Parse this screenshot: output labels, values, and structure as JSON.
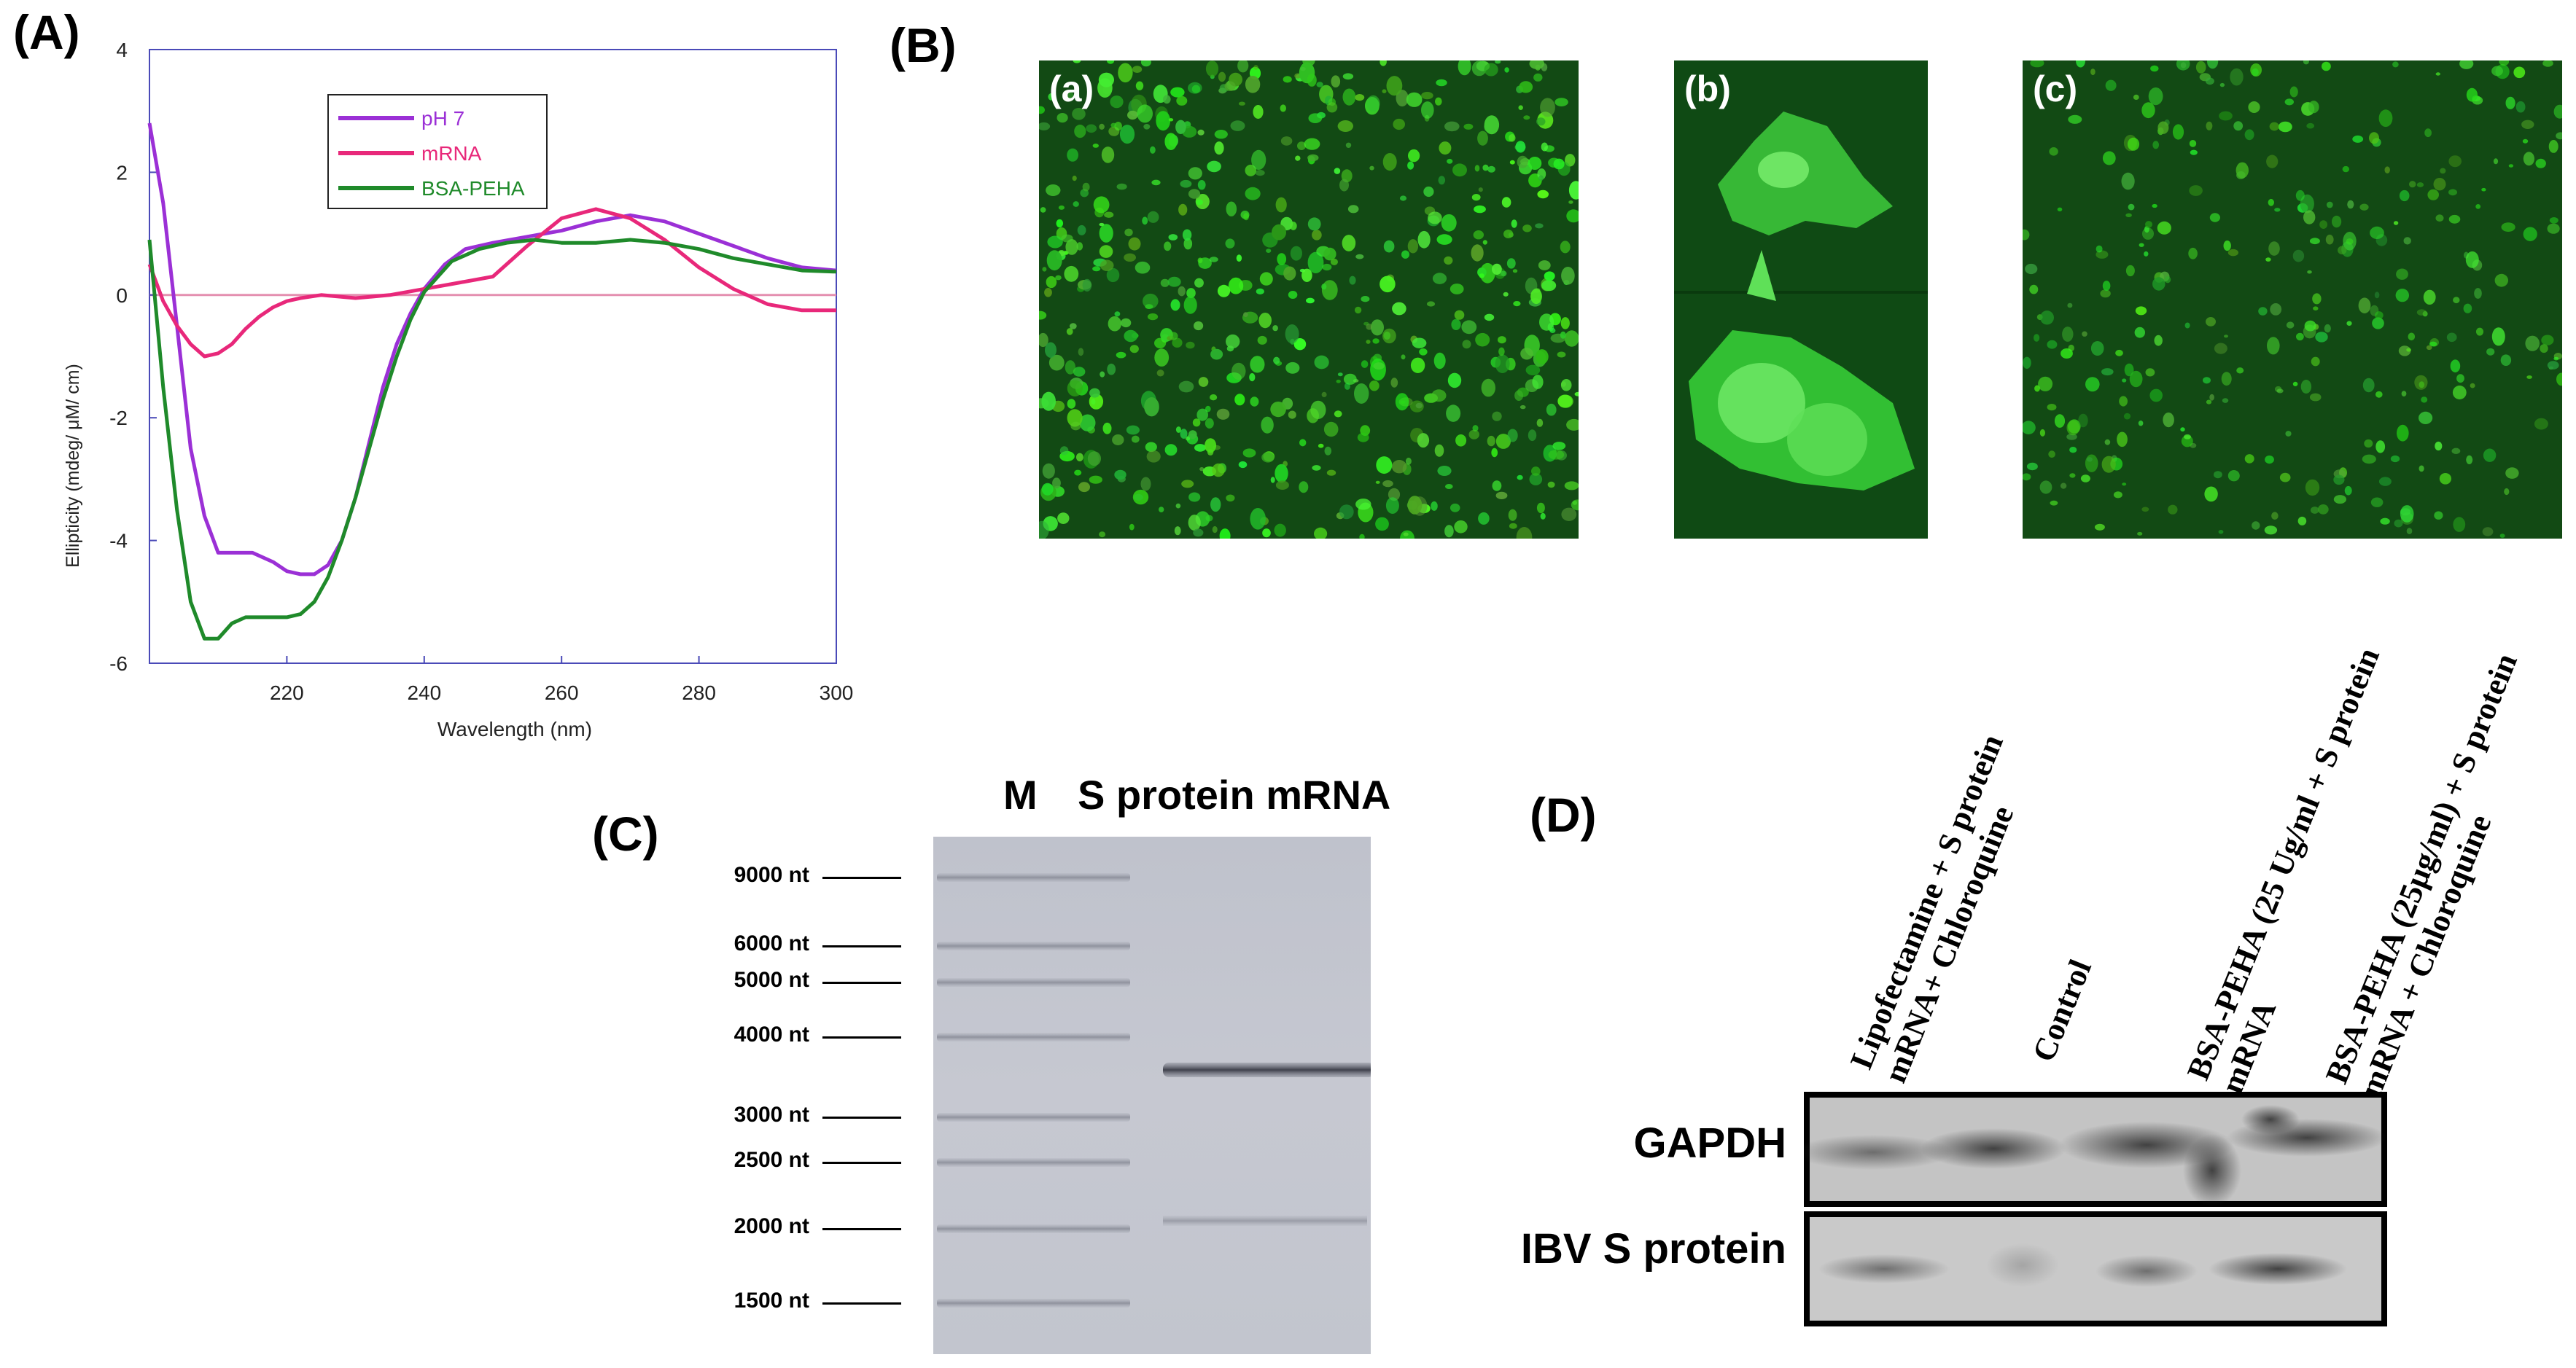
{
  "panels": {
    "A": "(A)",
    "B": "(B)",
    "C": "(C)",
    "D": "(D)"
  },
  "panel_b": {
    "sub_a": "(a)",
    "sub_b": "(b)",
    "sub_c": "(c)",
    "color": "#2fd02a"
  },
  "chart_data": {
    "type": "line",
    "title": "",
    "xlabel": "Wavelength (nm)",
    "ylabel": "Ellipticity (mdeg/ μM/ cm)",
    "xlim": [
      200,
      300
    ],
    "ylim": [
      -6,
      4
    ],
    "xticks": [
      220,
      240,
      260,
      280,
      300
    ],
    "yticks": [
      4,
      2,
      0,
      -2,
      -4,
      -6
    ],
    "grid": false,
    "legend_position": "top-center",
    "series": [
      {
        "name": "pH 7",
        "color": "#9b30d6",
        "x": [
          200,
          202,
          204,
          206,
          208,
          210,
          212,
          215,
          218,
          220,
          222,
          224,
          226,
          228,
          230,
          232,
          234,
          236,
          238,
          240,
          243,
          246,
          250,
          255,
          260,
          265,
          270,
          275,
          280,
          285,
          290,
          295,
          300
        ],
        "y": [
          2.8,
          1.5,
          -0.5,
          -2.5,
          -3.6,
          -4.2,
          -4.2,
          -4.2,
          -4.35,
          -4.5,
          -4.55,
          -4.55,
          -4.4,
          -4.0,
          -3.3,
          -2.4,
          -1.5,
          -0.8,
          -0.3,
          0.1,
          0.5,
          0.75,
          0.85,
          0.95,
          1.05,
          1.2,
          1.3,
          1.2,
          1.0,
          0.8,
          0.6,
          0.45,
          0.4
        ]
      },
      {
        "name": "mRNA",
        "color": "#e8287a",
        "x": [
          200,
          202,
          204,
          206,
          208,
          210,
          212,
          214,
          216,
          218,
          220,
          222,
          225,
          230,
          235,
          240,
          245,
          250,
          255,
          260,
          265,
          270,
          275,
          280,
          285,
          290,
          295,
          300
        ],
        "y": [
          0.5,
          -0.1,
          -0.5,
          -0.8,
          -1.0,
          -0.95,
          -0.8,
          -0.55,
          -0.35,
          -0.2,
          -0.1,
          -0.05,
          0.0,
          -0.05,
          0.0,
          0.1,
          0.2,
          0.3,
          0.8,
          1.25,
          1.4,
          1.25,
          0.9,
          0.45,
          0.1,
          -0.15,
          -0.25,
          -0.25
        ]
      },
      {
        "name": "BSA-PEHA",
        "color": "#1f8a2a",
        "x": [
          200,
          202,
          204,
          206,
          208,
          210,
          212,
          214,
          216,
          218,
          220,
          222,
          224,
          226,
          228,
          230,
          232,
          234,
          236,
          238,
          240,
          242,
          244,
          248,
          252,
          256,
          260,
          265,
          270,
          275,
          280,
          285,
          290,
          295,
          300
        ],
        "y": [
          0.9,
          -1.5,
          -3.5,
          -5.0,
          -5.6,
          -5.6,
          -5.35,
          -5.25,
          -5.25,
          -5.25,
          -5.25,
          -5.2,
          -5.0,
          -4.6,
          -4.0,
          -3.3,
          -2.5,
          -1.7,
          -1.0,
          -0.4,
          0.05,
          0.3,
          0.55,
          0.75,
          0.85,
          0.9,
          0.85,
          0.85,
          0.9,
          0.85,
          0.75,
          0.6,
          0.5,
          0.4,
          0.38
        ]
      }
    ],
    "reference_line": {
      "y": 0,
      "color": "#e48fb0"
    }
  },
  "panel_c": {
    "lane_m": "M",
    "lane_s": "S protein mRNA",
    "markers": [
      "9000 nt",
      "6000 nt",
      "5000 nt",
      "4000 nt",
      "3000 nt",
      "2500 nt",
      "2000 nt",
      "1500 nt"
    ]
  },
  "panel_d": {
    "lanes": [
      "Lipofectamine + S protein\nmRNA+ Chloroquine",
      "Control",
      "BSA-PEHA (25 Ug/ml + S protein\nmRNA",
      "BSA-PEHA (25µg/ml) + S protein\nmRNA + Chloroquine"
    ],
    "blot_gapdh": "GAPDH",
    "blot_s": "IBV S protein"
  }
}
